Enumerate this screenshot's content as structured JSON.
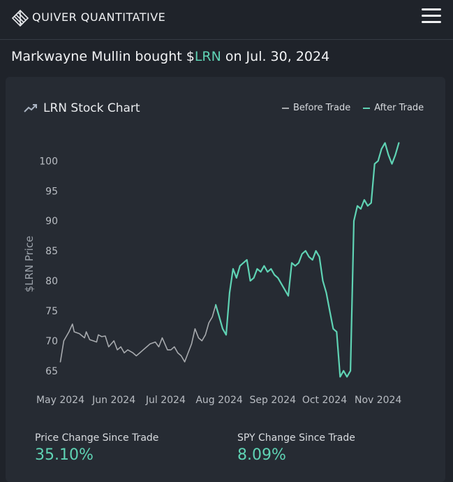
{
  "header": {
    "brand": "QUIVER QUANTITATIVE",
    "logo_icon": "quiver-logo-icon",
    "menu_icon": "hamburger-menu-icon"
  },
  "headline": {
    "prefix": "Markwayne Mullin bought $",
    "ticker": "LRN",
    "suffix": " on Jul. 30, 2024"
  },
  "chart_card": {
    "title": "LRN Stock Chart",
    "title_icon": "trending-up-icon",
    "legend": [
      {
        "label": "Before Trade",
        "color": "#a7aaae"
      },
      {
        "label": "After Trade",
        "color": "#5fd3b4"
      }
    ]
  },
  "chart_data": {
    "type": "line",
    "ylabel": "$LRN Price",
    "xlabel": "",
    "ylim": [
      63,
      104
    ],
    "yticks": [
      65,
      70,
      75,
      80,
      85,
      90,
      95,
      100
    ],
    "xticks": [
      "May 2024",
      "Jun 2024",
      "Jul 2024",
      "Aug 2024",
      "Sep 2024",
      "Oct 2024",
      "Nov 2024"
    ],
    "xlim": [
      "2024-04-30",
      "2024-11-27"
    ],
    "trade_date": "2024-07-30",
    "series": [
      {
        "name": "Before Trade",
        "color": "#a7aaae",
        "points": [
          [
            "2024-05-01",
            66.5
          ],
          [
            "2024-05-03",
            70.0
          ],
          [
            "2024-05-06",
            71.5
          ],
          [
            "2024-05-08",
            72.8
          ],
          [
            "2024-05-09",
            71.5
          ],
          [
            "2024-05-12",
            71.2
          ],
          [
            "2024-05-15",
            70.5
          ],
          [
            "2024-05-16",
            71.5
          ],
          [
            "2024-05-18",
            70.2
          ],
          [
            "2024-05-20",
            70.0
          ],
          [
            "2024-05-22",
            69.8
          ],
          [
            "2024-05-23",
            71.0
          ],
          [
            "2024-05-25",
            70.7
          ],
          [
            "2024-05-27",
            70.8
          ],
          [
            "2024-05-29",
            69.0
          ],
          [
            "2024-06-01",
            70.0
          ],
          [
            "2024-06-03",
            68.5
          ],
          [
            "2024-06-05",
            69.0
          ],
          [
            "2024-06-07",
            68.0
          ],
          [
            "2024-06-09",
            68.5
          ],
          [
            "2024-06-12",
            68.0
          ],
          [
            "2024-06-14",
            67.5
          ],
          [
            "2024-06-16",
            68.0
          ],
          [
            "2024-06-18",
            68.5
          ],
          [
            "2024-06-20",
            69.0
          ],
          [
            "2024-06-22",
            69.5
          ],
          [
            "2024-06-25",
            69.8
          ],
          [
            "2024-06-27",
            69.0
          ],
          [
            "2024-06-29",
            70.5
          ],
          [
            "2024-07-02",
            68.5
          ],
          [
            "2024-07-04",
            68.5
          ],
          [
            "2024-07-06",
            69.0
          ],
          [
            "2024-07-08",
            68.0
          ],
          [
            "2024-07-10",
            67.5
          ],
          [
            "2024-07-12",
            66.5
          ],
          [
            "2024-07-14",
            68.0
          ],
          [
            "2024-07-16",
            69.5
          ],
          [
            "2024-07-18",
            72.0
          ],
          [
            "2024-07-20",
            70.5
          ],
          [
            "2024-07-22",
            70.0
          ],
          [
            "2024-07-24",
            71.0
          ],
          [
            "2024-07-26",
            73.0
          ],
          [
            "2024-07-28",
            74.0
          ],
          [
            "2024-07-30",
            76.0
          ]
        ]
      },
      {
        "name": "After Trade",
        "color": "#5fd3b4",
        "points": [
          [
            "2024-07-30",
            76.0
          ],
          [
            "2024-08-01",
            74.0
          ],
          [
            "2024-08-03",
            72.0
          ],
          [
            "2024-08-05",
            71.0
          ],
          [
            "2024-08-07",
            78.0
          ],
          [
            "2024-08-09",
            82.0
          ],
          [
            "2024-08-11",
            80.5
          ],
          [
            "2024-08-13",
            82.5
          ],
          [
            "2024-08-15",
            83.0
          ],
          [
            "2024-08-17",
            83.5
          ],
          [
            "2024-08-19",
            80.0
          ],
          [
            "2024-08-21",
            80.5
          ],
          [
            "2024-08-23",
            82.0
          ],
          [
            "2024-08-25",
            81.5
          ],
          [
            "2024-08-27",
            82.5
          ],
          [
            "2024-08-29",
            81.5
          ],
          [
            "2024-08-31",
            82.0
          ],
          [
            "2024-09-02",
            81.0
          ],
          [
            "2024-09-04",
            80.5
          ],
          [
            "2024-09-06",
            79.5
          ],
          [
            "2024-09-08",
            78.5
          ],
          [
            "2024-09-10",
            77.5
          ],
          [
            "2024-09-12",
            83.0
          ],
          [
            "2024-09-14",
            82.5
          ],
          [
            "2024-09-16",
            83.0
          ],
          [
            "2024-09-18",
            84.5
          ],
          [
            "2024-09-20",
            85.0
          ],
          [
            "2024-09-22",
            84.0
          ],
          [
            "2024-09-24",
            83.5
          ],
          [
            "2024-09-26",
            85.0
          ],
          [
            "2024-09-28",
            84.0
          ],
          [
            "2024-09-30",
            80.0
          ],
          [
            "2024-10-02",
            78.0
          ],
          [
            "2024-10-04",
            75.0
          ],
          [
            "2024-10-06",
            72.0
          ],
          [
            "2024-10-08",
            71.5
          ],
          [
            "2024-10-10",
            64.0
          ],
          [
            "2024-10-12",
            65.0
          ],
          [
            "2024-10-14",
            64.0
          ],
          [
            "2024-10-16",
            65.0
          ],
          [
            "2024-10-18",
            90.0
          ],
          [
            "2024-10-20",
            92.5
          ],
          [
            "2024-10-22",
            92.0
          ],
          [
            "2024-10-24",
            93.5
          ],
          [
            "2024-10-26",
            92.5
          ],
          [
            "2024-10-28",
            93.0
          ],
          [
            "2024-10-30",
            99.5
          ],
          [
            "2024-11-01",
            100.0
          ],
          [
            "2024-11-03",
            102.0
          ],
          [
            "2024-11-05",
            103.0
          ],
          [
            "2024-11-07",
            101.0
          ],
          [
            "2024-11-09",
            99.5
          ],
          [
            "2024-11-11",
            101.0
          ],
          [
            "2024-11-13",
            103.0
          ]
        ]
      }
    ]
  },
  "stats": [
    {
      "label": "Price Change Since Trade",
      "value": "35.10%"
    },
    {
      "label": "SPY Change Since Trade",
      "value": "8.09%"
    }
  ]
}
